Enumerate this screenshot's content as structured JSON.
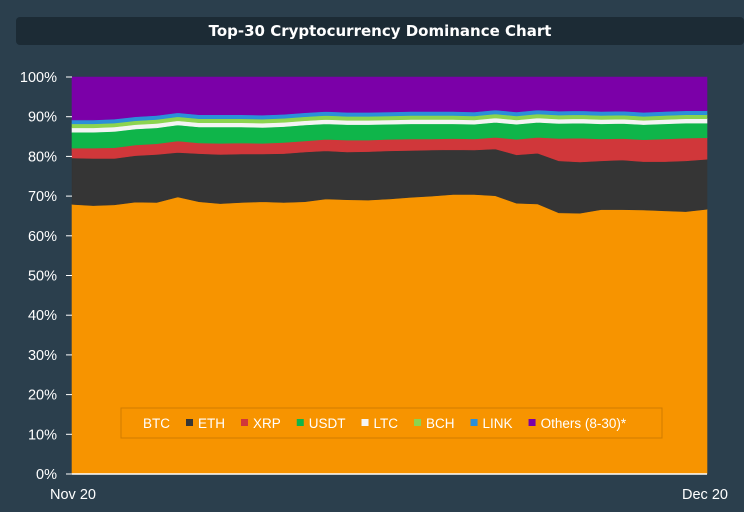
{
  "header": {
    "title": "Top-30 Cryptocurrency Dominance Chart"
  },
  "chart_data": {
    "type": "area",
    "stacked": true,
    "title": "Top-30 Cryptocurrency Dominance Chart",
    "xlabel": "",
    "ylabel": "",
    "ylim": [
      0,
      100
    ],
    "y_ticks": [
      "0%",
      "10%",
      "20%",
      "30%",
      "40%",
      "50%",
      "60%",
      "70%",
      "80%",
      "90%",
      "100%"
    ],
    "x_tick_labels": [
      "Nov 20",
      "Dec 20"
    ],
    "grid": false,
    "legend_position": "bottom-center",
    "x": [
      0,
      1,
      2,
      3,
      4,
      5,
      6,
      7,
      8,
      9,
      10,
      11,
      12,
      13,
      14,
      15,
      16,
      17,
      18,
      19,
      20,
      21,
      22,
      23,
      24,
      25,
      26,
      27,
      28,
      29,
      30
    ],
    "series": [
      {
        "name": "BTC",
        "color": "#f79400",
        "values": [
          67.9,
          67.6,
          67.8,
          68.5,
          68.4,
          69.8,
          68.6,
          68.1,
          68.4,
          68.6,
          68.4,
          68.6,
          69.3,
          69.1,
          69.0,
          69.3,
          69.7,
          70.0,
          70.4,
          70.4,
          70.1,
          68.2,
          68.0,
          65.8,
          65.7,
          66.6,
          66.6,
          66.5,
          66.3,
          66.1,
          66.7
        ]
      },
      {
        "name": "ETH",
        "color": "#353535",
        "values": [
          11.7,
          11.9,
          11.7,
          11.7,
          12.1,
          11.2,
          12.1,
          12.4,
          12.2,
          12.0,
          12.3,
          12.5,
          12.1,
          12.0,
          12.2,
          12.1,
          11.8,
          11.6,
          11.3,
          11.2,
          11.8,
          12.2,
          12.8,
          13.1,
          12.9,
          12.3,
          12.5,
          12.2,
          12.4,
          12.8,
          12.6
        ]
      },
      {
        "name": "XRP",
        "color": "#d0373a",
        "values": [
          2.5,
          2.6,
          2.7,
          2.7,
          2.7,
          2.9,
          2.7,
          2.8,
          2.8,
          2.7,
          2.8,
          2.8,
          2.9,
          3.0,
          2.9,
          2.9,
          2.9,
          2.8,
          2.8,
          2.8,
          2.9,
          3.9,
          4.0,
          5.6,
          6.0,
          5.5,
          5.4,
          5.5,
          5.7,
          5.7,
          5.4
        ]
      },
      {
        "name": "USDT",
        "color": "#0fb54a",
        "values": [
          4.0,
          4.0,
          4.1,
          4.0,
          4.0,
          4.0,
          4.0,
          4.1,
          4.0,
          4.0,
          4.0,
          4.0,
          3.9,
          3.9,
          3.9,
          3.8,
          3.8,
          3.8,
          3.7,
          3.7,
          3.8,
          3.8,
          3.8,
          3.8,
          3.8,
          3.8,
          3.8,
          3.8,
          3.8,
          3.8,
          3.7
        ]
      },
      {
        "name": "LTC",
        "color": "#f4f4f4",
        "values": [
          1.1,
          1.1,
          1.1,
          1.1,
          1.1,
          1.1,
          1.1,
          1.1,
          1.1,
          1.1,
          1.1,
          1.1,
          1.1,
          1.1,
          1.1,
          1.1,
          1.1,
          1.1,
          1.1,
          1.1,
          1.1,
          1.1,
          1.1,
          1.1,
          1.1,
          1.1,
          1.1,
          1.1,
          1.1,
          1.1,
          1.1
        ]
      },
      {
        "name": "BCH",
        "color": "#8cd44f",
        "values": [
          1.0,
          1.0,
          1.0,
          1.0,
          1.0,
          1.0,
          1.0,
          1.0,
          1.0,
          1.0,
          1.0,
          1.0,
          1.0,
          1.0,
          1.0,
          1.0,
          1.0,
          1.0,
          1.0,
          1.0,
          1.0,
          1.0,
          1.0,
          1.0,
          1.0,
          1.0,
          1.0,
          1.0,
          1.0,
          1.0,
          1.0
        ]
      },
      {
        "name": "LINK",
        "color": "#2b8fd9",
        "values": [
          1.0,
          1.0,
          1.0,
          1.0,
          1.0,
          1.0,
          1.0,
          1.0,
          1.0,
          1.0,
          1.0,
          1.0,
          1.0,
          1.0,
          1.0,
          1.0,
          1.0,
          1.0,
          1.0,
          1.0,
          1.0,
          1.0,
          1.0,
          1.0,
          1.0,
          1.0,
          1.0,
          1.0,
          1.0,
          1.0,
          1.0
        ]
      },
      {
        "name": "Others (8-30)*",
        "color": "#7b00a8",
        "values": [
          10.8,
          10.8,
          10.6,
          10.0,
          9.7,
          9.0,
          9.5,
          9.5,
          9.5,
          9.6,
          9.4,
          9.0,
          8.7,
          8.9,
          8.9,
          8.8,
          8.7,
          8.7,
          8.7,
          8.8,
          8.3,
          8.8,
          8.3,
          8.6,
          8.5,
          8.7,
          8.6,
          8.9,
          8.7,
          8.5,
          8.5
        ]
      }
    ]
  }
}
